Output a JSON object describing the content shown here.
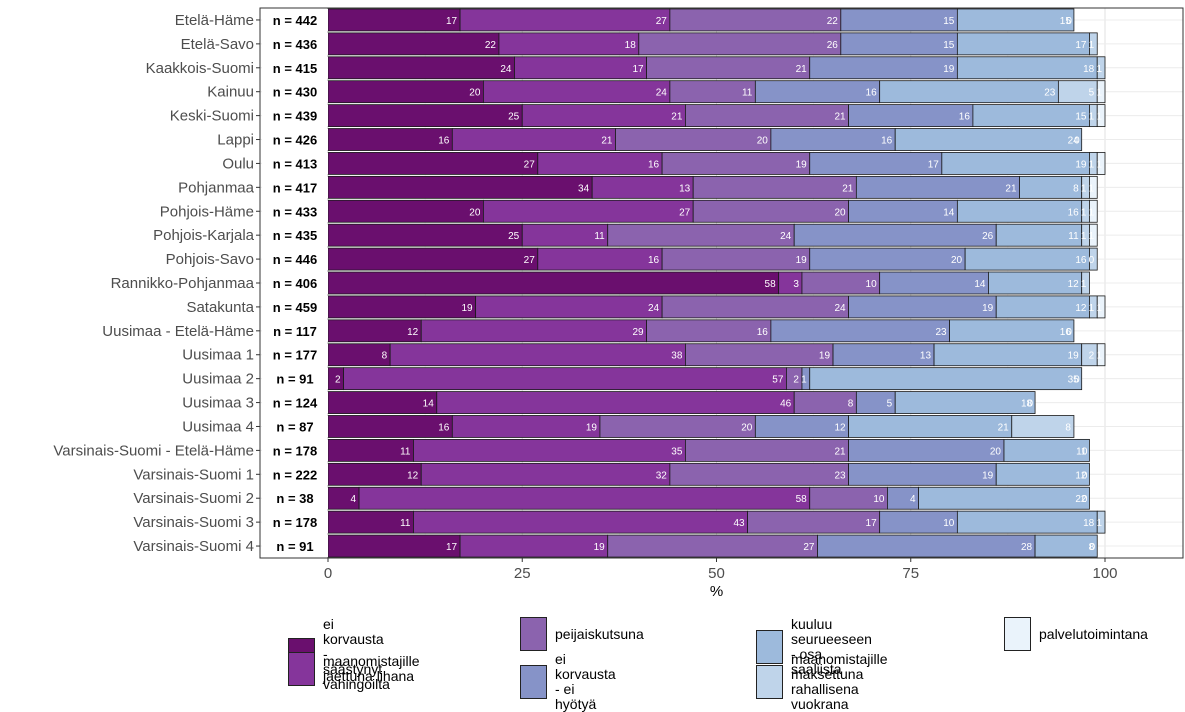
{
  "chart_data": {
    "type": "bar",
    "orientation": "horizontal",
    "stacked": true,
    "xlabel": "%",
    "xlim": [
      0,
      100
    ],
    "xticks": [
      "0",
      "25",
      "50",
      "75",
      "100"
    ],
    "grid": true,
    "legend_position": "bottom",
    "categories": [
      "Etelä-Häme",
      "Etelä-Savo",
      "Kaakkois-Suomi",
      "Kainuu",
      "Keski-Suomi",
      "Lappi",
      "Oulu",
      "Pohjanmaa",
      "Pohjois-Häme",
      "Pohjois-Karjala",
      "Pohjois-Savo",
      "Rannikko-Pohjanmaa",
      "Satakunta",
      "Uusimaa - Etelä-Häme",
      "Uusimaa 1",
      "Uusimaa 2",
      "Uusimaa 3",
      "Uusimaa 4",
      "Varsinais-Suomi - Etelä-Häme",
      "Varsinais-Suomi 1",
      "Varsinais-Suomi 2",
      "Varsinais-Suomi 3",
      "Varsinais-Suomi 4"
    ],
    "n_labels": [
      "n = 442",
      "n = 436",
      "n = 415",
      "n = 430",
      "n = 439",
      "n = 426",
      "n = 413",
      "n = 417",
      "n = 433",
      "n = 435",
      "n = 446",
      "n = 406",
      "n = 459",
      "n = 117",
      "n = 177",
      "n = 91",
      "n = 124",
      "n = 87",
      "n = 178",
      "n = 222",
      "n = 38",
      "n = 178",
      "n = 91"
    ],
    "series": [
      {
        "name": "ei korvausta\n - säästynyt vahingoilta",
        "color": "#6a0f6e",
        "values": [
          17,
          22,
          24,
          20,
          25,
          16,
          27,
          34,
          20,
          25,
          27,
          58,
          19,
          12,
          8,
          2,
          14,
          16,
          11,
          12,
          4,
          11,
          17
        ]
      },
      {
        "name": "maanomistajille\n jaettuna lihana",
        "color": "#85359b",
        "values": [
          27,
          18,
          17,
          24,
          21,
          21,
          16,
          13,
          27,
          11,
          16,
          3,
          24,
          29,
          38,
          57,
          46,
          19,
          35,
          32,
          58,
          43,
          19
        ]
      },
      {
        "name": "peijaiskutsuna",
        "color": "#8b63ae",
        "values": [
          22,
          26,
          21,
          11,
          21,
          20,
          19,
          21,
          20,
          24,
          19,
          10,
          24,
          16,
          19,
          2,
          8,
          20,
          21,
          23,
          10,
          17,
          27
        ]
      },
      {
        "name": "ei korvausta - ei hyötyä",
        "color": "#8693c8",
        "values": [
          15,
          15,
          19,
          16,
          16,
          16,
          17,
          21,
          14,
          26,
          20,
          14,
          19,
          23,
          13,
          1,
          5,
          12,
          20,
          19,
          4,
          10,
          28
        ]
      },
      {
        "name": "kuuluu seurueeseen\n - osa saaliista",
        "color": "#9dbadc",
        "values": [
          15,
          17,
          18,
          23,
          15,
          24,
          19,
          8,
          16,
          11,
          16,
          12,
          12,
          16,
          19,
          35,
          18,
          21,
          11,
          12,
          22,
          18,
          8
        ]
      },
      {
        "name": "maanomistajille maksettuna\n rahallisena vuokrana",
        "color": "#bfd4ea",
        "values": [
          0,
          1,
          1,
          5,
          1,
          0,
          1,
          1,
          1,
          1,
          1,
          1,
          1,
          0,
          2,
          0,
          0,
          8,
          0,
          0,
          0,
          1,
          0
        ]
      },
      {
        "name": "palvelutoimintana",
        "color": "#eaf3fb",
        "values": [
          0,
          0,
          1,
          1,
          1,
          0,
          1,
          1,
          1,
          1,
          0,
          0,
          1,
          0,
          1,
          0,
          0,
          0,
          0,
          0,
          0,
          0,
          0
        ]
      }
    ],
    "labels": [
      [
        "17",
        "27",
        "22",
        "15",
        "15",
        "0"
      ],
      [
        "22",
        "18",
        "26",
        "15",
        "17",
        "1"
      ],
      [
        "24",
        "17",
        "21",
        "19",
        "18",
        "1",
        "1"
      ],
      [
        "20",
        "24",
        "11",
        "16",
        "23",
        "5",
        "1"
      ],
      [
        "25",
        "21",
        "21",
        "16",
        "15",
        "1",
        "1"
      ],
      [
        "16",
        "21",
        "20",
        "16",
        "24",
        "0"
      ],
      [
        "27",
        "16",
        "19",
        "17",
        "19",
        "1",
        "1"
      ],
      [
        "34",
        "13",
        "21",
        "21",
        "8",
        "1",
        "1"
      ],
      [
        "20",
        "27",
        "20",
        "14",
        "16",
        "1",
        "1"
      ],
      [
        "25",
        "11",
        "24",
        "26",
        "11",
        "1",
        "1"
      ],
      [
        "27",
        "16",
        "19",
        "20",
        "16",
        "0"
      ],
      [
        "58",
        "3",
        "10",
        "14",
        "12",
        "1"
      ],
      [
        "19",
        "24",
        "24",
        "19",
        "12",
        "1",
        "1"
      ],
      [
        "12",
        "29",
        "16",
        "23",
        "16",
        "0"
      ],
      [
        "8",
        "38",
        "19",
        "13",
        "19",
        "2",
        "1"
      ],
      [
        "2",
        "57",
        "2",
        "1",
        "35",
        "0"
      ],
      [
        "14",
        "46",
        "8",
        "5",
        "18",
        "0"
      ],
      [
        "16",
        "19",
        "20",
        "12",
        "21",
        "8"
      ],
      [
        "11",
        "35",
        "21",
        "20",
        "11",
        "0"
      ],
      [
        "12",
        "32",
        "23",
        "19",
        "12",
        "0"
      ],
      [
        "4",
        "58",
        "10",
        "4",
        "22",
        "0"
      ],
      [
        "11",
        "43",
        "17",
        "10",
        "18",
        "1"
      ],
      [
        "17",
        "19",
        "27",
        "28",
        "8",
        "0"
      ]
    ]
  }
}
